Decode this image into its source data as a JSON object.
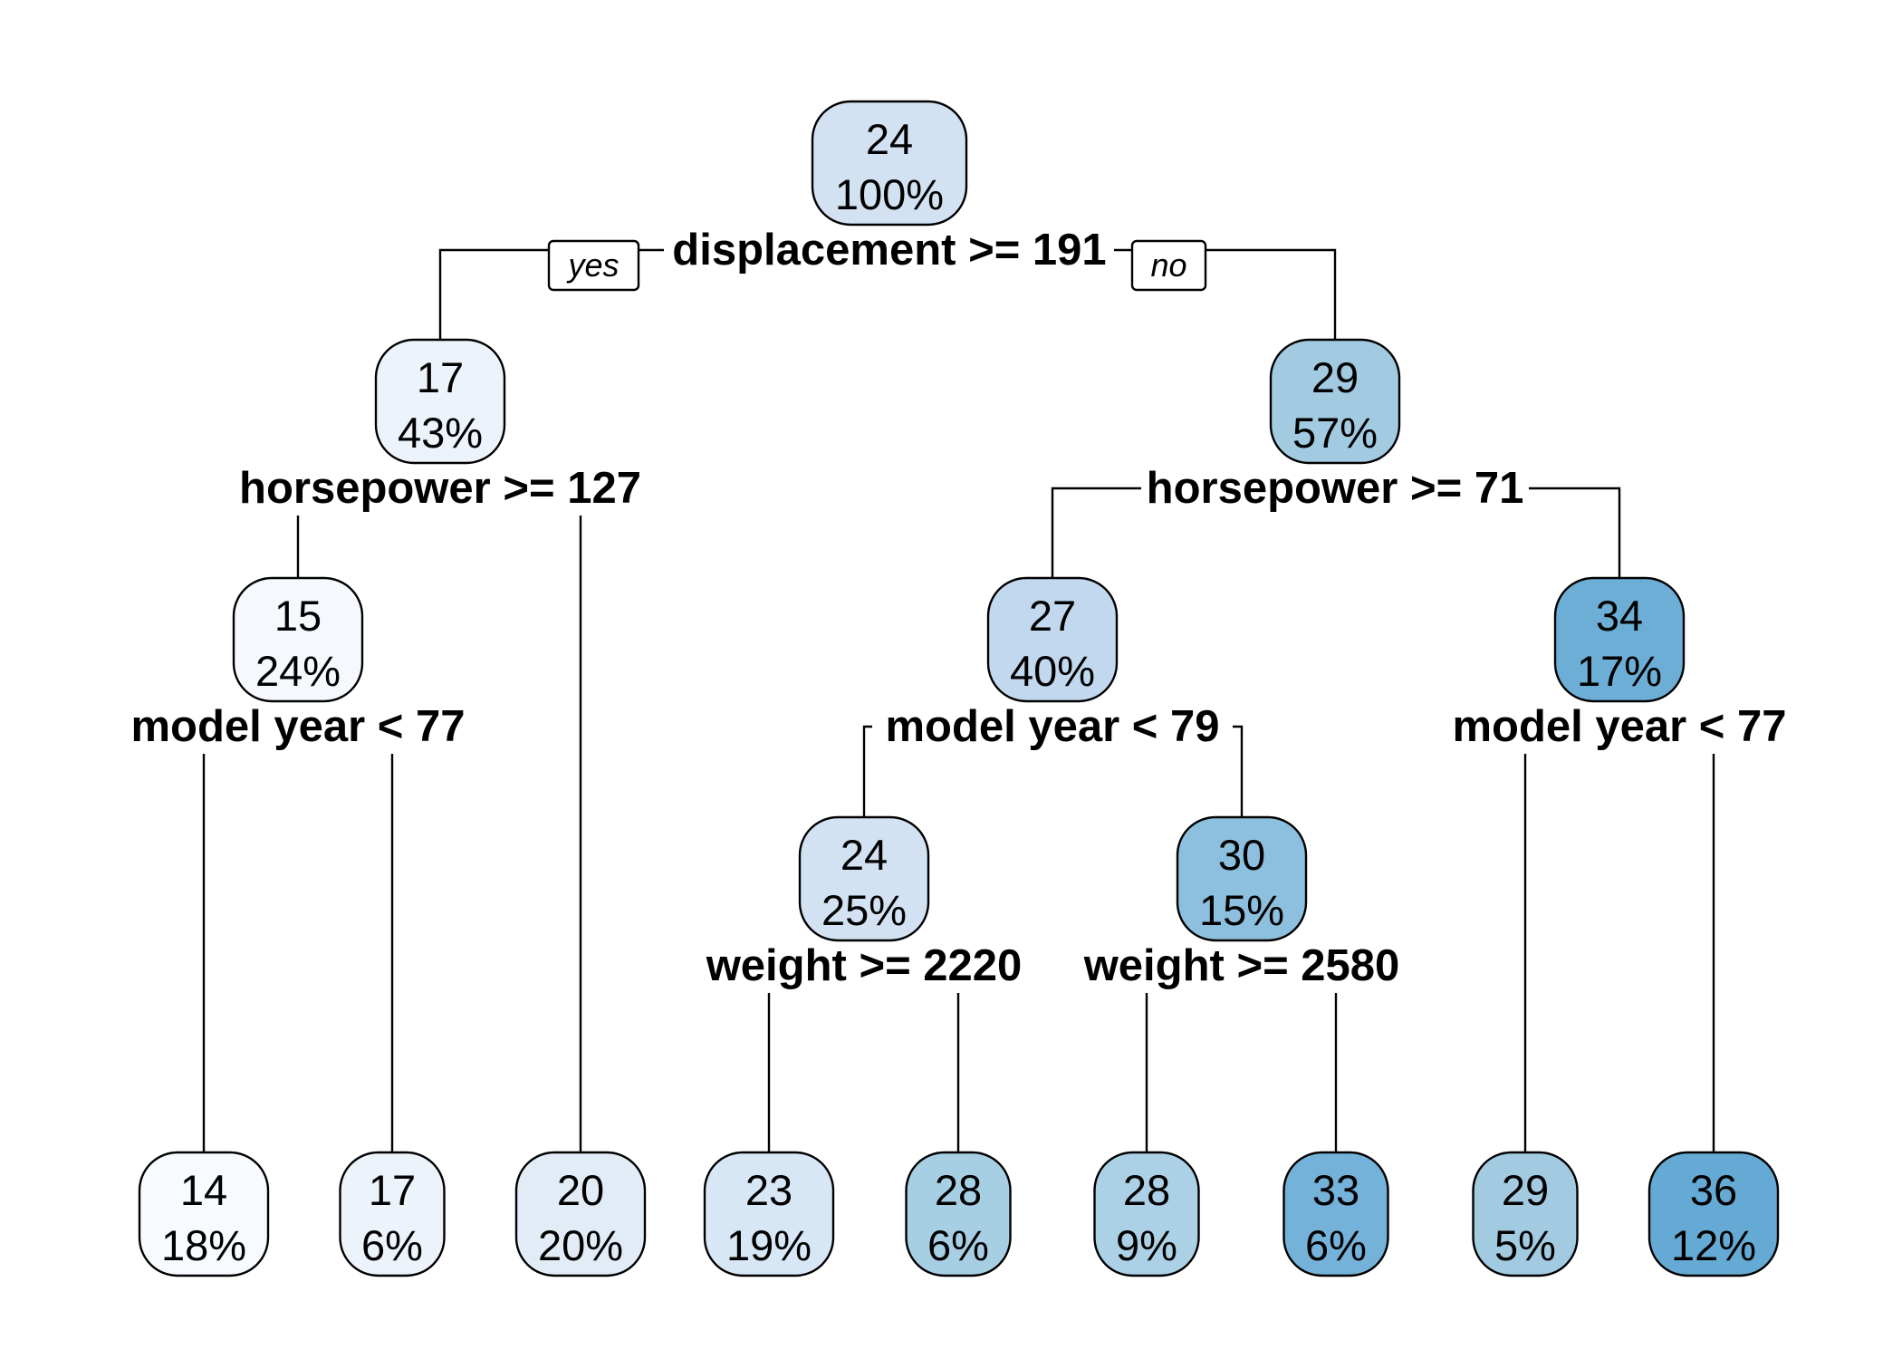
{
  "tree": {
    "yes_label": "yes",
    "no_label": "no",
    "nodes": [
      {
        "id": "root",
        "value": "24",
        "percent": "100%",
        "fill": "#d2e2f2",
        "split": "displacement >= 191",
        "split_connected": true
      },
      {
        "id": "n2",
        "value": "17",
        "percent": "43%",
        "fill": "#ecf3fb",
        "split": "horsepower >= 127",
        "split_connected": false
      },
      {
        "id": "n3",
        "value": "29",
        "percent": "57%",
        "fill": "#a2cbe2",
        "split": "horsepower >= 71",
        "split_connected": true
      },
      {
        "id": "n4",
        "value": "15",
        "percent": "24%",
        "fill": "#f5f9fe",
        "split": "model year < 77",
        "split_connected": false
      },
      {
        "id": "n5",
        "value": "20",
        "percent": "20%",
        "fill": "#e1ecf7"
      },
      {
        "id": "n6",
        "value": "27",
        "percent": "40%",
        "fill": "#c2d8ee",
        "split": "model year < 79",
        "split_connected": true
      },
      {
        "id": "n7",
        "value": "34",
        "percent": "17%",
        "fill": "#6daed7",
        "split": "model year < 77",
        "split_connected": false
      },
      {
        "id": "n8",
        "value": "14",
        "percent": "18%",
        "fill": "#f7fbff"
      },
      {
        "id": "n9",
        "value": "17",
        "percent": "6%",
        "fill": "#ecf3fb"
      },
      {
        "id": "n12",
        "value": "24",
        "percent": "25%",
        "fill": "#d2e2f2",
        "split": "weight >= 2220",
        "split_connected": false
      },
      {
        "id": "n13",
        "value": "30",
        "percent": "15%",
        "fill": "#8dc0de",
        "split": "weight >= 2580",
        "split_connected": false
      },
      {
        "id": "n14",
        "value": "29",
        "percent": "5%",
        "fill": "#a2cbe2"
      },
      {
        "id": "n15",
        "value": "36",
        "percent": "12%",
        "fill": "#65aad4"
      },
      {
        "id": "n24",
        "value": "23",
        "percent": "19%",
        "fill": "#d8e7f5"
      },
      {
        "id": "n25",
        "value": "28",
        "percent": "6%",
        "fill": "#a7cfe4"
      },
      {
        "id": "n26",
        "value": "28",
        "percent": "9%",
        "fill": "#acd0e6"
      },
      {
        "id": "n27",
        "value": "33",
        "percent": "6%",
        "fill": "#74b2d9"
      }
    ],
    "edges": [
      {
        "from": "root",
        "to": "n2"
      },
      {
        "from": "root",
        "to": "n3"
      },
      {
        "from": "n2",
        "to": "n4"
      },
      {
        "from": "n2",
        "to": "n5"
      },
      {
        "from": "n3",
        "to": "n6"
      },
      {
        "from": "n3",
        "to": "n7"
      },
      {
        "from": "n4",
        "to": "n8"
      },
      {
        "from": "n4",
        "to": "n9"
      },
      {
        "from": "n6",
        "to": "n12"
      },
      {
        "from": "n6",
        "to": "n13"
      },
      {
        "from": "n7",
        "to": "n14"
      },
      {
        "from": "n7",
        "to": "n15"
      },
      {
        "from": "n12",
        "to": "n24"
      },
      {
        "from": "n12",
        "to": "n25"
      },
      {
        "from": "n13",
        "to": "n26"
      },
      {
        "from": "n13",
        "to": "n27"
      }
    ]
  }
}
